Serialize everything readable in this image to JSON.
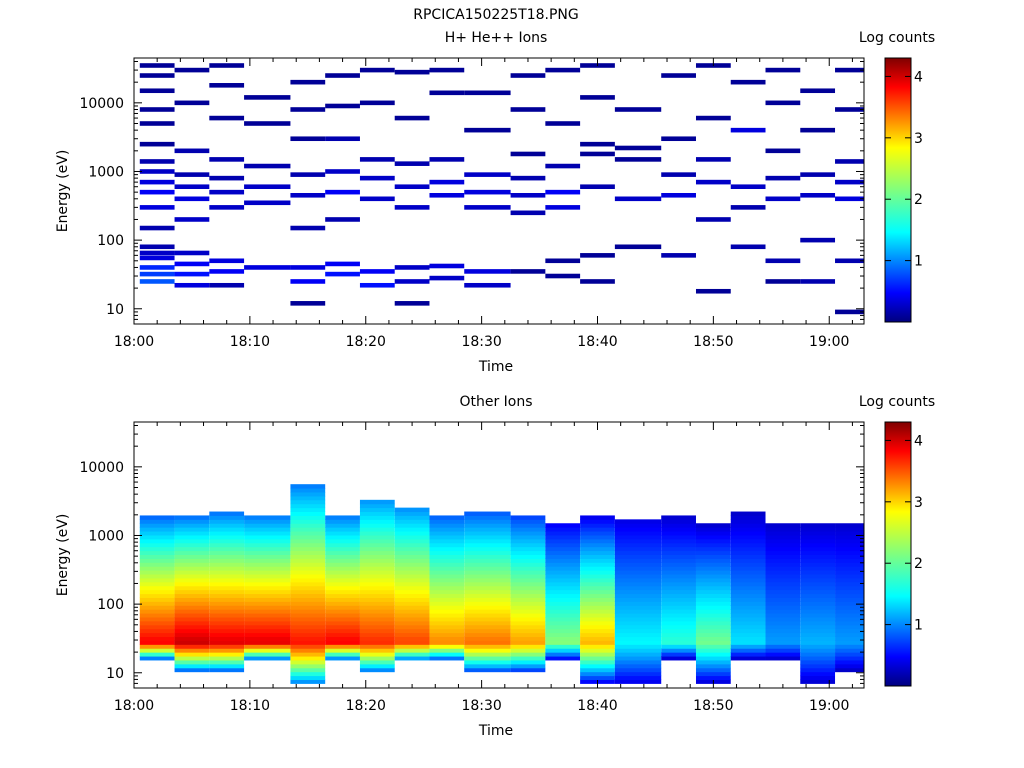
{
  "figure_title": "RPCICA150225T18.PNG",
  "chart_data": [
    {
      "type": "heatmap",
      "title": "H+ He++ Ions",
      "xlabel": "Time",
      "ylabel": "Energy (eV)",
      "x_ticks": [
        "18:00",
        "18:10",
        "18:20",
        "18:30",
        "18:40",
        "18:50",
        "19:00"
      ],
      "y_ticks": [
        "10",
        "100",
        "1000",
        "10000"
      ],
      "y_scale": "log",
      "xlim": [
        "18:00",
        "19:03"
      ],
      "ylim": [
        6,
        45000
      ],
      "colorbar": {
        "label": "Log counts",
        "ticks": [
          "1",
          "2",
          "3",
          "4"
        ],
        "range": [
          0,
          4.3
        ]
      },
      "time_bins": [
        "18:02",
        "18:05",
        "18:08",
        "18:11",
        "18:15",
        "18:18",
        "18:21",
        "18:24",
        "18:27",
        "18:30",
        "18:34",
        "18:37",
        "18:40",
        "18:43",
        "18:47",
        "18:50",
        "18:53",
        "18:56",
        "18:59",
        "19:02"
      ],
      "cells": [
        {
          "t": 0,
          "e": [
            [
              25,
              0.9
            ],
            [
              32,
              0.8
            ],
            [
              40,
              0.7
            ],
            [
              55,
              0.4
            ],
            [
              65,
              0.3
            ],
            [
              80,
              0.2
            ],
            [
              150,
              0.2
            ],
            [
              300,
              0.4
            ],
            [
              500,
              0.5
            ],
            [
              700,
              0.4
            ],
            [
              1000,
              0.3
            ],
            [
              1400,
              0.2
            ],
            [
              2500,
              0.1
            ],
            [
              5000,
              0.1
            ],
            [
              8000,
              0.1
            ],
            [
              15000,
              0.1
            ],
            [
              25000,
              0.1
            ],
            [
              35000,
              0.1
            ]
          ]
        },
        {
          "t": 1,
          "e": [
            [
              22,
              0.4
            ],
            [
              32,
              0.6
            ],
            [
              45,
              0.5
            ],
            [
              65,
              0.3
            ],
            [
              200,
              0.3
            ],
            [
              400,
              0.4
            ],
            [
              600,
              0.3
            ],
            [
              900,
              0.2
            ],
            [
              2000,
              0.2
            ],
            [
              10000,
              0.1
            ],
            [
              30000,
              0.1
            ]
          ]
        },
        {
          "t": 2,
          "e": [
            [
              22,
              0.2
            ],
            [
              35,
              0.5
            ],
            [
              50,
              0.4
            ],
            [
              300,
              0.3
            ],
            [
              500,
              0.3
            ],
            [
              800,
              0.2
            ],
            [
              1500,
              0.2
            ],
            [
              6000,
              0.1
            ],
            [
              18000,
              0.1
            ],
            [
              35000,
              0.1
            ]
          ]
        },
        {
          "t": 3,
          "e": [
            [
              40,
              0.4
            ],
            [
              350,
              0.3
            ],
            [
              600,
              0.3
            ],
            [
              1200,
              0.2
            ],
            [
              5000,
              0.1
            ],
            [
              12000,
              0.1
            ]
          ]
        },
        {
          "t": 4,
          "e": [
            [
              12,
              0.1
            ],
            [
              25,
              0.5
            ],
            [
              40,
              0.4
            ],
            [
              150,
              0.2
            ],
            [
              450,
              0.3
            ],
            [
              900,
              0.2
            ],
            [
              3000,
              0.1
            ],
            [
              8000,
              0.1
            ],
            [
              20000,
              0.1
            ]
          ]
        },
        {
          "t": 5,
          "e": [
            [
              32,
              0.6
            ],
            [
              45,
              0.5
            ],
            [
              200,
              0.2
            ],
            [
              500,
              0.5
            ],
            [
              1000,
              0.3
            ],
            [
              3000,
              0.2
            ],
            [
              9000,
              0.1
            ],
            [
              25000,
              0.1
            ]
          ]
        },
        {
          "t": 6,
          "e": [
            [
              22,
              0.6
            ],
            [
              35,
              0.5
            ],
            [
              400,
              0.3
            ],
            [
              800,
              0.3
            ],
            [
              1500,
              0.2
            ],
            [
              10000,
              0.1
            ],
            [
              30000,
              0.1
            ]
          ]
        },
        {
          "t": 7,
          "e": [
            [
              12,
              0.1
            ],
            [
              25,
              0.3
            ],
            [
              40,
              0.3
            ],
            [
              300,
              0.3
            ],
            [
              600,
              0.3
            ],
            [
              1300,
              0.2
            ],
            [
              6000,
              0.1
            ],
            [
              28000,
              0.1
            ]
          ]
        },
        {
          "t": 8,
          "e": [
            [
              28,
              0.3
            ],
            [
              42,
              0.4
            ],
            [
              450,
              0.4
            ],
            [
              700,
              0.4
            ],
            [
              1500,
              0.2
            ],
            [
              14000,
              0.1
            ],
            [
              30000,
              0.1
            ]
          ]
        },
        {
          "t": 9,
          "e": [
            [
              22,
              0.3
            ],
            [
              35,
              0.4
            ],
            [
              300,
              0.3
            ],
            [
              500,
              0.4
            ],
            [
              900,
              0.3
            ],
            [
              4000,
              0.1
            ],
            [
              14000,
              0.1
            ]
          ]
        },
        {
          "t": 10,
          "e": [
            [
              35,
              0.1
            ],
            [
              250,
              0.2
            ],
            [
              450,
              0.3
            ],
            [
              800,
              0.2
            ],
            [
              1800,
              0.1
            ],
            [
              8000,
              0.1
            ],
            [
              25000,
              0.1
            ]
          ]
        },
        {
          "t": 11,
          "e": [
            [
              30,
              0.1
            ],
            [
              50,
              0.1
            ],
            [
              300,
              0.4
            ],
            [
              500,
              0.5
            ],
            [
              1200,
              0.2
            ],
            [
              5000,
              0.1
            ],
            [
              30000,
              0.1
            ]
          ]
        },
        {
          "t": 12,
          "e": [
            [
              25,
              0.1
            ],
            [
              60,
              0.1
            ],
            [
              600,
              0.2
            ],
            [
              1800,
              0.1
            ],
            [
              2500,
              0.1
            ],
            [
              12000,
              0.1
            ],
            [
              35000,
              0.1
            ]
          ]
        },
        {
          "t": 13,
          "e": [
            [
              80,
              0.1
            ],
            [
              400,
              0.3
            ],
            [
              1500,
              0.1
            ],
            [
              2200,
              0.1
            ],
            [
              8000,
              0.1
            ]
          ]
        },
        {
          "t": 14,
          "e": [
            [
              60,
              0.2
            ],
            [
              450,
              0.4
            ],
            [
              900,
              0.2
            ],
            [
              3000,
              0.1
            ],
            [
              25000,
              0.1
            ]
          ]
        },
        {
          "t": 15,
          "e": [
            [
              18,
              0.1
            ],
            [
              200,
              0.2
            ],
            [
              700,
              0.3
            ],
            [
              1500,
              0.2
            ],
            [
              6000,
              0.1
            ],
            [
              35000,
              0.1
            ]
          ]
        },
        {
          "t": 16,
          "e": [
            [
              80,
              0.2
            ],
            [
              300,
              0.2
            ],
            [
              600,
              0.3
            ],
            [
              4000,
              0.4
            ],
            [
              20000,
              0.1
            ]
          ]
        },
        {
          "t": 17,
          "e": [
            [
              25,
              0.1
            ],
            [
              50,
              0.2
            ],
            [
              400,
              0.3
            ],
            [
              800,
              0.2
            ],
            [
              2000,
              0.1
            ],
            [
              10000,
              0.1
            ],
            [
              30000,
              0.1
            ]
          ]
        },
        {
          "t": 18,
          "e": [
            [
              25,
              0.2
            ],
            [
              100,
              0.2
            ],
            [
              450,
              0.3
            ],
            [
              900,
              0.2
            ],
            [
              4000,
              0.1
            ],
            [
              15000,
              0.1
            ]
          ]
        },
        {
          "t": 19,
          "e": [
            [
              9,
              0.1
            ],
            [
              50,
              0.2
            ],
            [
              400,
              0.4
            ],
            [
              700,
              0.3
            ],
            [
              1400,
              0.2
            ],
            [
              8000,
              0.1
            ],
            [
              30000,
              0.1
            ]
          ]
        }
      ]
    },
    {
      "type": "heatmap",
      "title": "Other Ions",
      "xlabel": "Time",
      "ylabel": "Energy (eV)",
      "x_ticks": [
        "18:00",
        "18:10",
        "18:20",
        "18:30",
        "18:40",
        "18:50",
        "19:00"
      ],
      "y_ticks": [
        "10",
        "100",
        "1000",
        "10000"
      ],
      "y_scale": "log",
      "xlim": [
        "18:00",
        "19:03"
      ],
      "ylim": [
        6,
        45000
      ],
      "colorbar": {
        "label": "Log counts",
        "ticks": [
          "1",
          "2",
          "3",
          "4"
        ],
        "range": [
          0,
          4.3
        ]
      },
      "time_bins": [
        "18:02",
        "18:05",
        "18:08",
        "18:11",
        "18:15",
        "18:18",
        "18:21",
        "18:24",
        "18:27",
        "18:30",
        "18:34",
        "18:37",
        "18:40",
        "18:43",
        "18:47",
        "18:50",
        "18:53",
        "18:56",
        "18:59",
        "19:02"
      ],
      "profiles": [
        {
          "t": 0,
          "lo": 16,
          "hi": 2000,
          "peak": 3.8,
          "floor": 0.9
        },
        {
          "t": 1,
          "lo": 11,
          "hi": 1900,
          "peak": 4.0,
          "floor": 1.0
        },
        {
          "t": 2,
          "lo": 11,
          "hi": 2200,
          "peak": 3.9,
          "floor": 1.0
        },
        {
          "t": 3,
          "lo": 16,
          "hi": 2000,
          "peak": 3.9,
          "floor": 1.0
        },
        {
          "t": 4,
          "lo": 7,
          "hi": 5800,
          "peak": 3.7,
          "floor": 1.0
        },
        {
          "t": 5,
          "lo": 16,
          "hi": 2000,
          "peak": 3.8,
          "floor": 1.0
        },
        {
          "t": 6,
          "lo": 11,
          "hi": 3500,
          "peak": 3.6,
          "floor": 1.1
        },
        {
          "t": 7,
          "lo": 16,
          "hi": 2600,
          "peak": 3.5,
          "floor": 1.1
        },
        {
          "t": 8,
          "lo": 16,
          "hi": 2000,
          "peak": 3.2,
          "floor": 0.9
        },
        {
          "t": 9,
          "lo": 11,
          "hi": 2200,
          "peak": 3.3,
          "floor": 0.9
        },
        {
          "t": 10,
          "lo": 11,
          "hi": 1900,
          "peak": 3.1,
          "floor": 0.8
        },
        {
          "t": 11,
          "lo": 16,
          "hi": 1500,
          "peak": 2.2,
          "floor": 0.5
        },
        {
          "t": 12,
          "lo": 7,
          "hi": 2000,
          "peak": 3.0,
          "floor": 0.4
        },
        {
          "t": 13,
          "lo": 7,
          "hi": 1800,
          "peak": 1.6,
          "floor": 0.4
        },
        {
          "t": 14,
          "lo": 16,
          "hi": 2000,
          "peak": 1.8,
          "floor": 0.3
        },
        {
          "t": 15,
          "lo": 7,
          "hi": 1500,
          "peak": 2.1,
          "floor": 0.3
        },
        {
          "t": 16,
          "lo": 16,
          "hi": 2200,
          "peak": 1.5,
          "floor": 0.3
        },
        {
          "t": 17,
          "lo": 16,
          "hi": 1600,
          "peak": 1.2,
          "floor": 0.3
        },
        {
          "t": 18,
          "lo": 7,
          "hi": 1600,
          "peak": 1.3,
          "floor": 0.3
        },
        {
          "t": 19,
          "lo": 11,
          "hi": 1600,
          "peak": 1.2,
          "floor": 0.3
        }
      ]
    }
  ]
}
